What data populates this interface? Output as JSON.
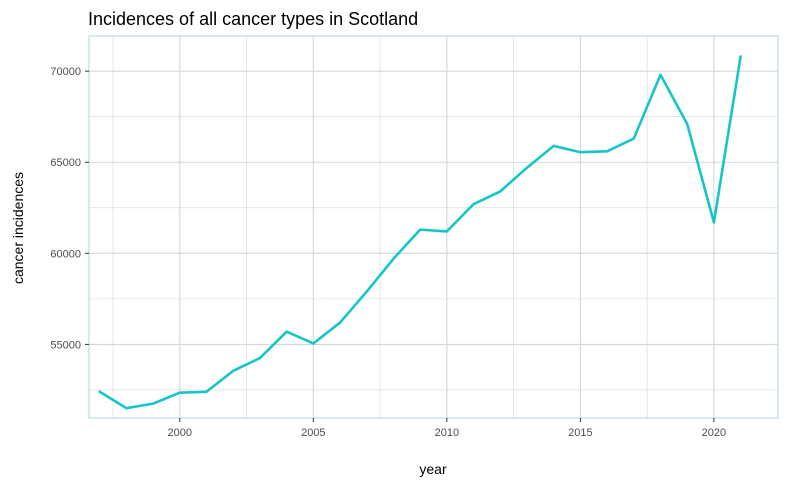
{
  "chart_data": {
    "type": "line",
    "title": "Incidences of all cancer types in Scotland",
    "xlabel": "year",
    "ylabel": "cancer incidences",
    "x": [
      1997,
      1998,
      1999,
      2000,
      2001,
      2002,
      2003,
      2004,
      2005,
      2006,
      2007,
      2008,
      2009,
      2010,
      2011,
      2012,
      2013,
      2014,
      2015,
      2016,
      2017,
      2018,
      2019,
      2020,
      2021
    ],
    "series": [
      {
        "values": [
          52400,
          51500,
          51750,
          52350,
          52400,
          53550,
          54250,
          55700,
          55050,
          56200,
          57900,
          59700,
          61300,
          61200,
          62700,
          63400,
          64700,
          65900,
          65550,
          65600,
          66300,
          69800,
          67100,
          61700,
          70800
        ],
        "color": "#17c5c9"
      }
    ],
    "xlim": [
      1996.6,
      2022.4
    ],
    "ylim": [
      50960,
      71930
    ],
    "xticks": [
      2000,
      2005,
      2010,
      2015,
      2020
    ],
    "yticks": [
      55000,
      60000,
      65000,
      70000
    ],
    "xtick_labels": [
      "2000",
      "2005",
      "2010",
      "2015",
      "2020"
    ],
    "ytick_labels": [
      "55000",
      "60000",
      "65000",
      "70000"
    ],
    "grid": true,
    "legend": "none",
    "panel_border_color": "#a8d8e0",
    "grid_color": "#d0d7dc"
  }
}
